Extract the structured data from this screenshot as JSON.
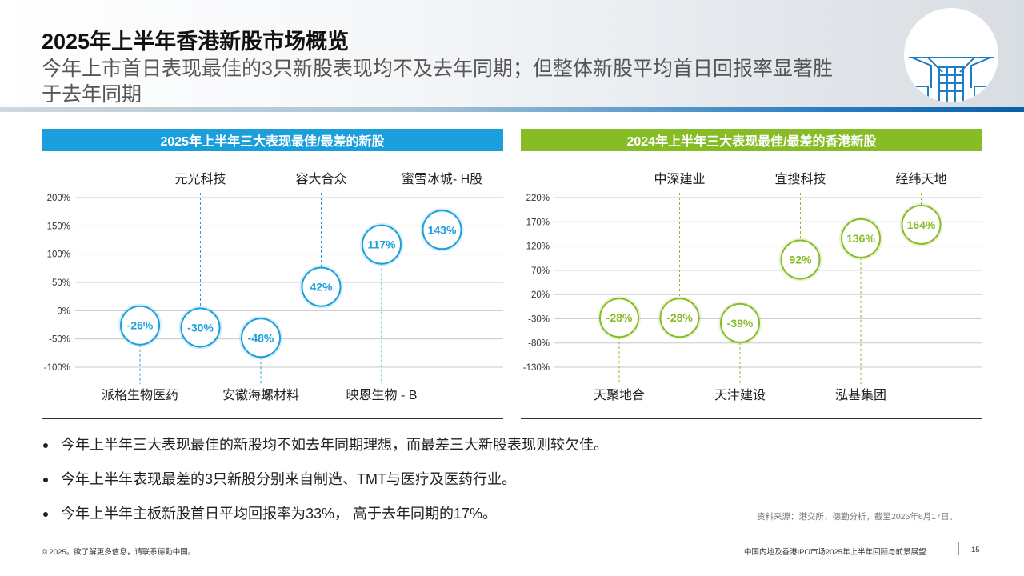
{
  "title": "2025年上半年香港新股市场概览",
  "subtitle": "今年上市首日表现最佳的3只新股表现均不及去年同期；但整体新股平均首日回报率显著胜于去年同期",
  "colors": {
    "blue": "#1a9fdc",
    "green": "#86bc25"
  },
  "left_panel": {
    "header": "2025年上半年三大表现最佳/最差的新股"
  },
  "right_panel": {
    "header": "2024年上半年三大表现最佳/最差的香港新股"
  },
  "chart_data": [
    {
      "type": "scatter",
      "title": "2025年上半年三大表现最佳/最差的新股",
      "ylim": [
        -100,
        200
      ],
      "yticks": [
        200,
        150,
        100,
        50,
        0,
        -50,
        -100
      ],
      "ytick_labels": [
        "200%",
        "150%",
        "100%",
        "50%",
        "0%",
        "-50%",
        "-100%"
      ],
      "color": "#1a9fdc",
      "points": [
        {
          "name": "派格生物医药",
          "value": -26,
          "label": "-26%",
          "name_pos": "bottom"
        },
        {
          "name": "元光科技",
          "value": -30,
          "label": "-30%",
          "name_pos": "top"
        },
        {
          "name": "安徽海螺材料",
          "value": -48,
          "label": "-48%",
          "name_pos": "bottom"
        },
        {
          "name": "容大合众",
          "value": 42,
          "label": "42%",
          "name_pos": "top"
        },
        {
          "name": "映恩生物 - B",
          "value": 117,
          "label": "117%",
          "name_pos": "bottom"
        },
        {
          "name": "蜜雪冰城- H股",
          "value": 143,
          "label": "143%",
          "name_pos": "top"
        }
      ]
    },
    {
      "type": "scatter",
      "title": "2024年上半年三大表现最佳/最差的香港新股",
      "ylim": [
        -130,
        220
      ],
      "yticks": [
        220,
        170,
        120,
        70,
        20,
        -30,
        -80,
        -130
      ],
      "ytick_labels": [
        "220%",
        "170%",
        "120%",
        "70%",
        "20%",
        "-30%",
        "-80%",
        "-130%"
      ],
      "color": "#86bc25",
      "points": [
        {
          "name": "天聚地合",
          "value": -28,
          "label": "-28%",
          "name_pos": "bottom"
        },
        {
          "name": "中深建业",
          "value": -28,
          "label": "-28%",
          "name_pos": "top"
        },
        {
          "name": "天津建设",
          "value": -39,
          "label": "-39%",
          "name_pos": "bottom"
        },
        {
          "name": "宜搜科技",
          "value": 92,
          "label": "92%",
          "name_pos": "top"
        },
        {
          "name": "泓基集团",
          "value": 136,
          "label": "136%",
          "name_pos": "bottom"
        },
        {
          "name": "经纬天地",
          "value": 164,
          "label": "164%",
          "name_pos": "top"
        }
      ]
    }
  ],
  "bullets": [
    "今年上半年三大表现最佳的新股均不如去年同期理想，而最差三大新股表现则较欠佳。",
    "今年上半年表现最差的3只新股分别来自制造、TMT与医疗及医药行业。",
    "今年上半年主板新股首日平均回报率为33%， 高于去年同期的17%。"
  ],
  "source": "资料来源：港交所、德勤分析，截至2025年6月17日。",
  "footer": {
    "copyright": "© 2025。欲了解更多信息，请联系德勤中国。",
    "report": "中国内地及香港IPO市场2025年上半年回顾与前景展望",
    "page": "15"
  }
}
